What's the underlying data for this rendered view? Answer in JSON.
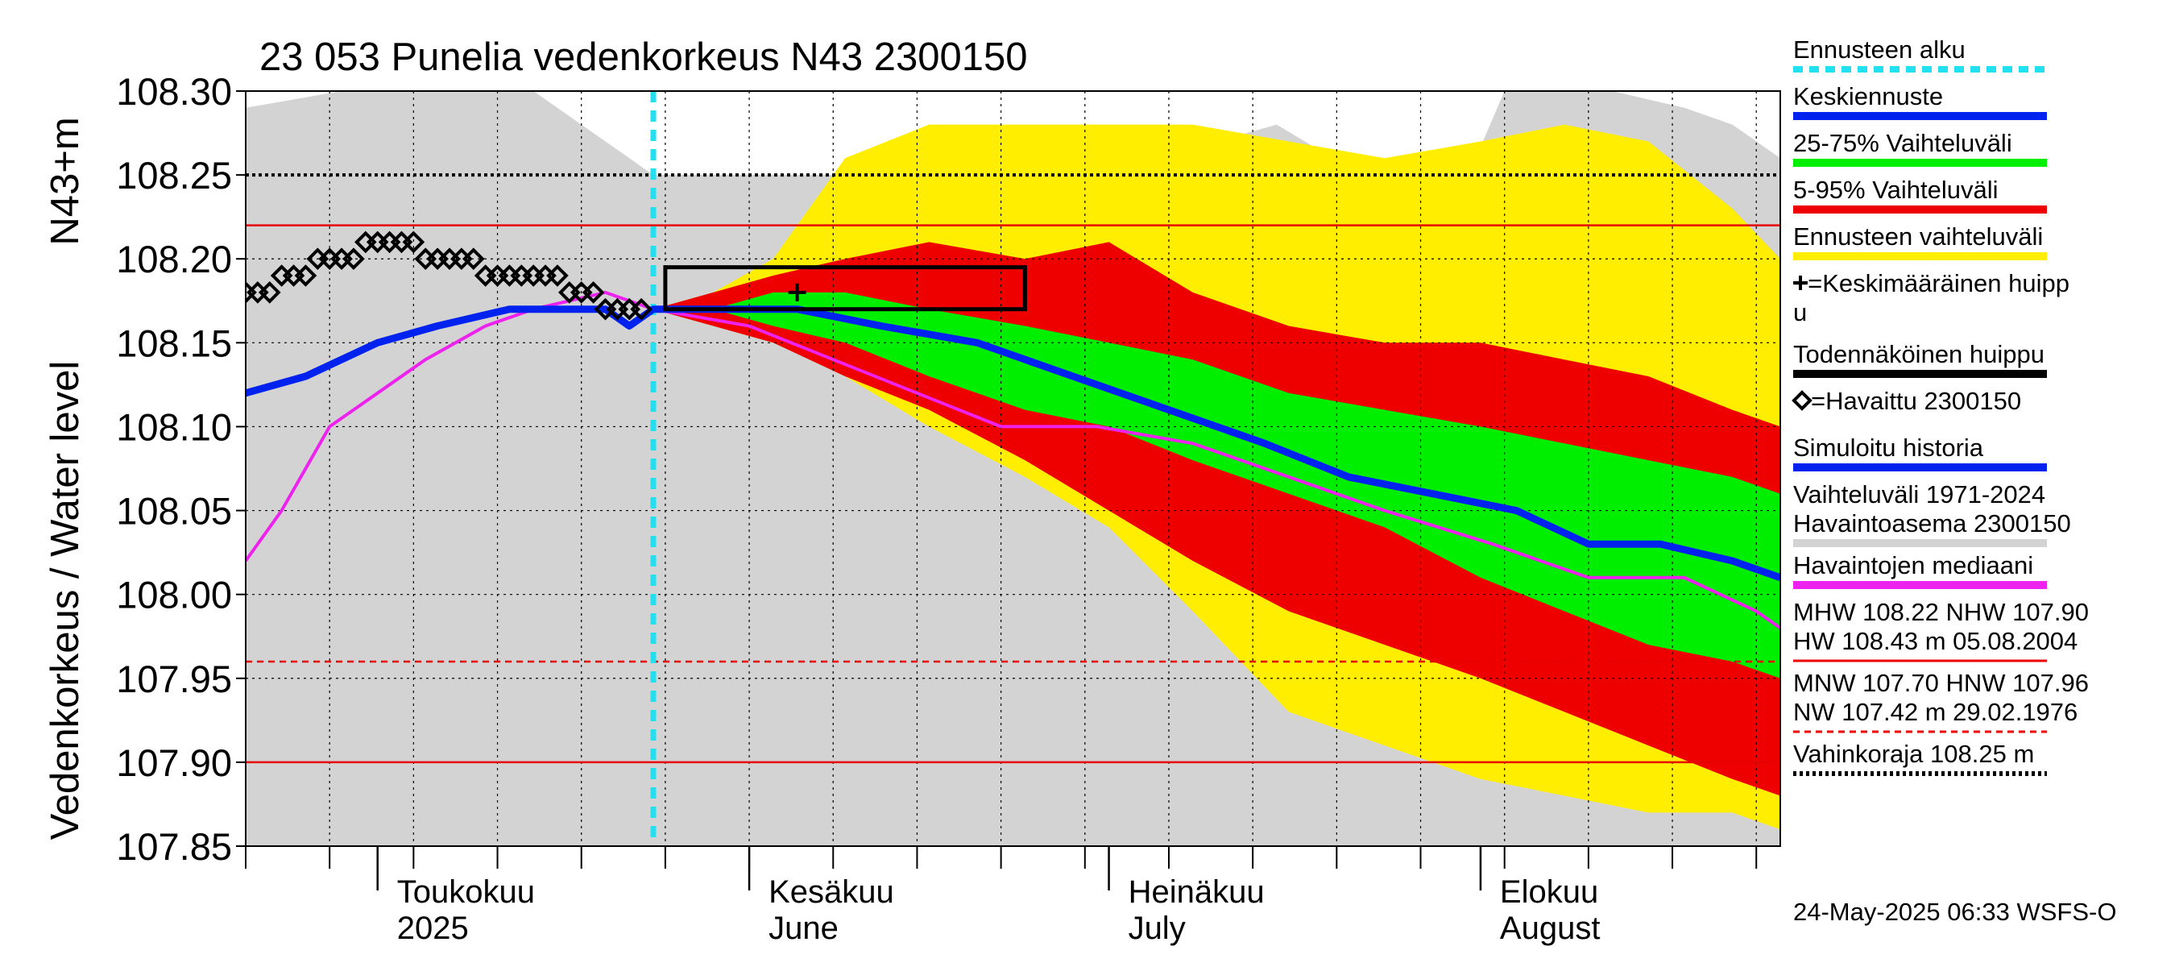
{
  "chart_data": {
    "type": "area",
    "title": "23 053 Punelia vedenkorkeus N43 2300150",
    "ylabel": "Vedenkorkeus / Water level",
    "yunit": "N43+m",
    "ylim": [
      107.85,
      108.3
    ],
    "yticks": [
      {
        "value": 108.3,
        "label": "108.30"
      },
      {
        "value": 108.25,
        "label": "108.25"
      },
      {
        "value": 108.2,
        "label": "108.20"
      },
      {
        "value": 108.15,
        "label": "108.15"
      },
      {
        "value": 108.1,
        "label": "108.10"
      },
      {
        "value": 108.05,
        "label": "108.05"
      },
      {
        "value": 108.0,
        "label": "108.00"
      },
      {
        "value": 107.95,
        "label": "107.95"
      },
      {
        "value": 107.9,
        "label": "107.90"
      },
      {
        "value": 107.85,
        "label": "107.85"
      }
    ],
    "xlim": [
      "2025-04-20",
      "2025-08-26"
    ],
    "months": [
      {
        "date": "2025-05-01",
        "fi": "Toukokuu",
        "en": "2025"
      },
      {
        "date": "2025-06-01",
        "fi": "Kesäkuu",
        "en": "June"
      },
      {
        "date": "2025-07-01",
        "fi": "Heinäkuu",
        "en": "July"
      },
      {
        "date": "2025-08-01",
        "fi": "Elokuu",
        "en": "August"
      }
    ],
    "forecast_start": "2025-05-24",
    "reference_lines": [
      {
        "value": 108.22,
        "style": "solid",
        "color": "#e60000"
      },
      {
        "value": 107.96,
        "style": "dashed",
        "color": "#e60000"
      },
      {
        "value": 107.9,
        "style": "solid",
        "color": "#e60000"
      },
      {
        "value": 108.25,
        "style": "dotted",
        "color": "#000000"
      }
    ],
    "grey_range": {
      "x": [
        "04-20",
        "04-28",
        "05-06",
        "05-14",
        "05-18",
        "05-22",
        "05-24",
        "05-29",
        "06-03",
        "06-10",
        "06-20",
        "06-30",
        "07-03",
        "07-06",
        "07-10",
        "07-15",
        "07-22",
        "07-31",
        "08-03",
        "08-06",
        "08-12",
        "08-18",
        "08-22",
        "08-26"
      ],
      "upper": [
        108.29,
        108.3,
        108.3,
        108.3,
        108.28,
        108.26,
        108.25,
        108.25,
        108.25,
        108.25,
        108.25,
        108.25,
        108.26,
        108.26,
        108.27,
        108.28,
        108.25,
        108.25,
        108.3,
        108.3,
        108.3,
        108.29,
        108.28,
        108.26
      ],
      "lower": [
        107.85,
        107.85,
        107.85,
        107.85,
        107.85,
        107.85,
        107.85,
        107.85,
        107.85,
        107.85,
        107.85,
        107.85,
        107.85,
        107.85,
        107.85,
        107.85,
        107.85,
        107.85,
        107.85,
        107.85,
        107.85,
        107.85,
        107.85,
        107.85
      ]
    },
    "forecast_x": [
      "05-24",
      "05-29",
      "06-03",
      "06-09",
      "06-16",
      "06-24",
      "07-01",
      "07-08",
      "07-16",
      "07-24",
      "08-01",
      "08-08",
      "08-15",
      "08-22",
      "08-26"
    ],
    "yellow_upper": [
      108.17,
      108.18,
      108.2,
      108.26,
      108.28,
      108.28,
      108.28,
      108.28,
      108.27,
      108.26,
      108.27,
      108.28,
      108.27,
      108.23,
      108.2
    ],
    "yellow_lower": [
      108.17,
      108.16,
      108.15,
      108.13,
      108.1,
      108.07,
      108.04,
      107.99,
      107.93,
      107.91,
      107.89,
      107.88,
      107.87,
      107.87,
      107.86
    ],
    "red_upper": [
      108.17,
      108.18,
      108.19,
      108.2,
      108.21,
      108.2,
      108.21,
      108.18,
      108.16,
      108.15,
      108.15,
      108.14,
      108.13,
      108.11,
      108.1
    ],
    "red_lower": [
      108.17,
      108.16,
      108.15,
      108.13,
      108.11,
      108.08,
      108.05,
      108.02,
      107.99,
      107.97,
      107.95,
      107.93,
      107.91,
      107.89,
      107.88
    ],
    "green_upper": [
      108.17,
      108.17,
      108.18,
      108.18,
      108.17,
      108.16,
      108.15,
      108.14,
      108.12,
      108.11,
      108.1,
      108.09,
      108.08,
      108.07,
      108.06
    ],
    "green_lower": [
      108.17,
      108.17,
      108.16,
      108.15,
      108.13,
      108.11,
      108.1,
      108.08,
      108.06,
      108.04,
      108.01,
      107.99,
      107.97,
      107.96,
      107.95
    ],
    "series": [
      {
        "name": "Keskiennuste",
        "x": [
          "04-20",
          "04-25",
          "05-01",
          "05-06",
          "05-12",
          "05-17",
          "05-20",
          "05-22",
          "05-24",
          "05-30",
          "06-05",
          "06-12",
          "06-20",
          "06-28",
          "07-06",
          "07-14",
          "07-21",
          "07-28",
          "08-04",
          "08-10",
          "08-16",
          "08-22",
          "08-26"
        ],
        "values": [
          108.12,
          108.13,
          108.15,
          108.16,
          108.17,
          108.17,
          108.17,
          108.16,
          108.17,
          108.17,
          108.17,
          108.16,
          108.15,
          108.13,
          108.11,
          108.09,
          108.07,
          108.06,
          108.05,
          108.03,
          108.03,
          108.02,
          108.01
        ]
      },
      {
        "name": "Havaittujen mediaani",
        "x": [
          "04-20",
          "04-23",
          "04-27",
          "05-01",
          "05-05",
          "05-10",
          "05-14",
          "05-20",
          "05-24",
          "06-01",
          "06-08",
          "06-15",
          "06-22",
          "06-30",
          "07-08",
          "07-16",
          "07-24",
          "08-02",
          "08-10",
          "08-18",
          "08-24",
          "08-26"
        ],
        "values": [
          108.02,
          108.05,
          108.1,
          108.12,
          108.14,
          108.16,
          108.17,
          108.18,
          108.17,
          108.16,
          108.14,
          108.12,
          108.1,
          108.1,
          108.09,
          108.07,
          108.05,
          108.03,
          108.01,
          108.01,
          107.99,
          107.98
        ]
      },
      {
        "name": "=Havaittu 2300150",
        "x": [
          "04-20",
          "04-21",
          "04-22",
          "04-23",
          "04-24",
          "04-25",
          "04-26",
          "04-27",
          "04-28",
          "04-29",
          "04-30",
          "05-01",
          "05-02",
          "05-03",
          "05-04",
          "05-05",
          "05-06",
          "05-07",
          "05-08",
          "05-09",
          "05-10",
          "05-11",
          "05-12",
          "05-13",
          "05-14",
          "05-15",
          "05-16",
          "05-17",
          "05-18",
          "05-19",
          "05-20",
          "05-21",
          "05-22",
          "05-23"
        ],
        "values": [
          108.18,
          108.18,
          108.18,
          108.19,
          108.19,
          108.19,
          108.2,
          108.2,
          108.2,
          108.2,
          108.21,
          108.21,
          108.21,
          108.21,
          108.21,
          108.2,
          108.2,
          108.2,
          108.2,
          108.2,
          108.19,
          108.19,
          108.19,
          108.19,
          108.19,
          108.19,
          108.19,
          108.18,
          108.18,
          108.18,
          108.17,
          108.17,
          108.17,
          108.17
        ]
      }
    ],
    "peak_box": {
      "x0": "05-25",
      "x1": "06-24",
      "y0": 108.17,
      "y1": 108.195
    },
    "mean_peak": {
      "date": "06-05",
      "value": 108.18
    },
    "legend": [
      {
        "label": "Ennusteen alku",
        "color": "#22e0f0",
        "style": "dotted"
      },
      {
        "label": "Keskiennuste",
        "color": "#0022ee",
        "style": "solid"
      },
      {
        "label": "25-75% Vaihteluväli",
        "color": "#00ee00",
        "style": "solid"
      },
      {
        "label": "5-95% Vaihteluväli",
        "color": "#ee0000",
        "style": "solid"
      },
      {
        "label": "Ennusteen vaihteluväli",
        "color": "#ffee00",
        "style": "solid"
      },
      {
        "label": "+=Keskimääräinen huipp",
        "label2": "u",
        "color": "#000000",
        "style": "none"
      },
      {
        "label": "Todennäköinen huippu",
        "color": "#000000",
        "style": "solid"
      },
      {
        "label": "=Havaittu 2300150",
        "color": "#000000",
        "style": "none"
      },
      {
        "label": "Simuloitu historia",
        "color": "#0022ee",
        "style": "solid"
      },
      {
        "label": "Vaihteluväli 1971-2024",
        "label2": " Havaintoasema 2300150",
        "color": "#d3d3d3",
        "style": "solid"
      },
      {
        "label": "Havaintojen mediaani",
        "color": "#ee22ee",
        "style": "solid"
      },
      {
        "label": "MHW 108.22 NHW 107.90",
        "label2": "HW 108.43 m 05.08.2004",
        "color": "#ee0000",
        "style": "solid"
      },
      {
        "label": "MNW 107.70 HNW 107.96",
        "label2": "NW 107.42 m 29.02.1976",
        "color": "#ee0000",
        "style": "dashed"
      },
      {
        "label": "Vahinkoraja 108.25 m",
        "color": "#000000",
        "style": "dotted"
      }
    ],
    "footer": "24-May-2025 06:33 WSFS-O"
  }
}
